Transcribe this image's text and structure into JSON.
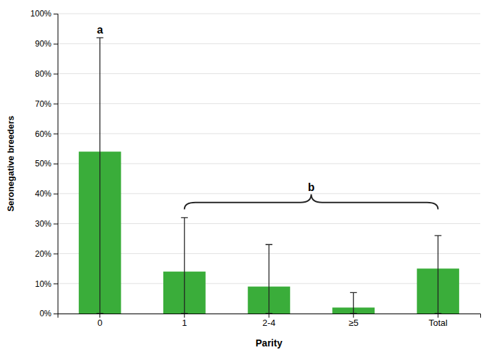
{
  "chart_data": {
    "type": "bar",
    "categories": [
      "0",
      "1",
      "2-4",
      "≥5",
      "Total"
    ],
    "values": [
      0.54,
      0.14,
      0.09,
      0.02,
      0.15
    ],
    "error_lower": [
      0.54,
      0.14,
      0.09,
      0.02,
      0.15
    ],
    "error_upper": [
      0.38,
      0.18,
      0.14,
      0.05,
      0.11
    ],
    "color": "#3aad3a",
    "xlabel": "Parity",
    "ylabel": "Seronegative breeders",
    "ylim": [
      0,
      1.0
    ],
    "yticks": [
      {
        "value": 0,
        "label": "0%"
      },
      {
        "value": 0.1,
        "label": "10%"
      },
      {
        "value": 0.2,
        "label": "20%"
      },
      {
        "value": 0.3,
        "label": "30%"
      },
      {
        "value": 0.4,
        "label": "40%"
      },
      {
        "value": 0.5,
        "label": "50%"
      },
      {
        "value": 0.6,
        "label": "60%"
      },
      {
        "value": 0.7,
        "label": "70%"
      },
      {
        "value": 0.8,
        "label": "80%"
      },
      {
        "value": 0.9,
        "label": "90%"
      },
      {
        "value": 1.0,
        "label": "100%"
      }
    ],
    "grid": true,
    "annotations": [
      {
        "text": "a",
        "categories": [
          "0"
        ]
      },
      {
        "text": "b",
        "categories": [
          "1",
          "Total"
        ]
      }
    ]
  }
}
